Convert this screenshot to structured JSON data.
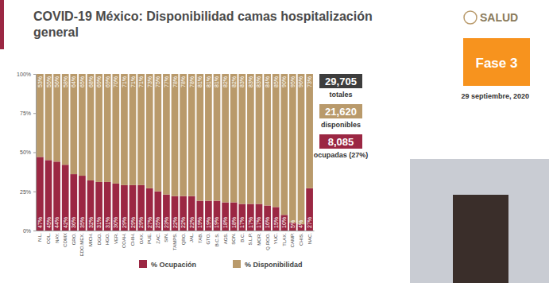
{
  "chart_data": {
    "type": "bar",
    "stacked": true,
    "data_labels": true,
    "grid": false,
    "title": "COVID-19 México: Disponibilidad camas hospitalización general",
    "categories": [
      "N.L.",
      "COL.",
      "NAY.",
      "CDMX",
      "GRO.",
      "EDO.MEX.",
      "MICH.",
      "DGO.",
      "HGO.",
      "VER.",
      "COAH.",
      "CHIH.",
      "OAX.",
      "PUE.",
      "ZAC.",
      "SIN.",
      "TAMPS.",
      "QRO.",
      "JAL.",
      "TAB.",
      "GTO.",
      "B.C.S.",
      "AGS.",
      "SON.",
      "B.C.",
      "S.L.P.",
      "MOR.",
      "Q.ROO.",
      "YUC.",
      "TLAX.",
      "CAMP.",
      "CHIS.",
      "NAC."
    ],
    "series": [
      {
        "name": "% Ocupación",
        "color": "#9b2743",
        "values": [
          47,
          45,
          44,
          42,
          36,
          35,
          32,
          31,
          31,
          30,
          29,
          29,
          29,
          27,
          25,
          23,
          22,
          22,
          22,
          19,
          19,
          19,
          18,
          18,
          17,
          17,
          17,
          16,
          15,
          10,
          5,
          4,
          27
        ],
        "value_labels": [
          "47%",
          "45%",
          "44%",
          "42%",
          "36%",
          "35%",
          "32%",
          "31%",
          "31%",
          "30%",
          "29%",
          "29%",
          "29%",
          "27%",
          "25%",
          "23%",
          "22%",
          "22%",
          "22%",
          "19%",
          "19%",
          "19%",
          "18%",
          "18%",
          "17%",
          "17%",
          "17%",
          "16%",
          "15%",
          "10%",
          "5%",
          "4%",
          "27%"
        ]
      },
      {
        "name": "% Disponibilidad",
        "color": "#b99a6b",
        "values": [
          53,
          55,
          56,
          58,
          64,
          65,
          68,
          69,
          69,
          70,
          71,
          71,
          71,
          73,
          75,
          77,
          78,
          78,
          78,
          81,
          81,
          81,
          82,
          82,
          83,
          83,
          83,
          84,
          85,
          90,
          95,
          96,
          73
        ],
        "value_labels": [
          "53%",
          "55%",
          "56%",
          "58%",
          "64%",
          "65%",
          "68%",
          "69%",
          "69%",
          "70%",
          "71%",
          "71%",
          "71%",
          "73%",
          "75%",
          "77%",
          "78%",
          "78%",
          "78%",
          "81%",
          "81%",
          "81%",
          "82%",
          "82%",
          "83%",
          "83%",
          "83%",
          "84%",
          "85%",
          "90%",
          "95%",
          "96%",
          "73%"
        ]
      }
    ],
    "ylim": [
      0,
      100
    ],
    "yticks": [
      {
        "value": 0,
        "label": "0%"
      },
      {
        "value": 25,
        "label": "25%"
      },
      {
        "value": 50,
        "label": "50%"
      },
      {
        "value": 75,
        "label": "75%"
      },
      {
        "value": 100,
        "label": "100%"
      }
    ],
    "legend": "bottom"
  },
  "panel": {
    "logo": "SALUD",
    "phase": "Fase 3",
    "date": "29 septiembre, 2020",
    "summary": [
      {
        "value": "29,705",
        "label": "totales",
        "color": "#3d3d3d"
      },
      {
        "value": "21,620",
        "label": "disponibles",
        "color": "#b99a6b"
      },
      {
        "value": "8,085",
        "label": "ocupadas (27%)",
        "color": "#9b2743"
      }
    ]
  }
}
